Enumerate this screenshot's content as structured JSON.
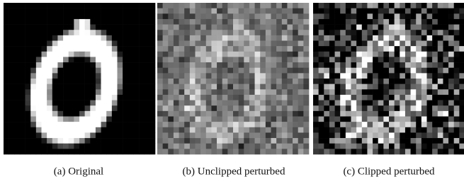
{
  "figure": {
    "panels": [
      {
        "caption": "(a) Original"
      },
      {
        "caption": "(b) Unclipped perturbed"
      },
      {
        "caption": "(c) Clipped perturbed"
      }
    ]
  }
}
